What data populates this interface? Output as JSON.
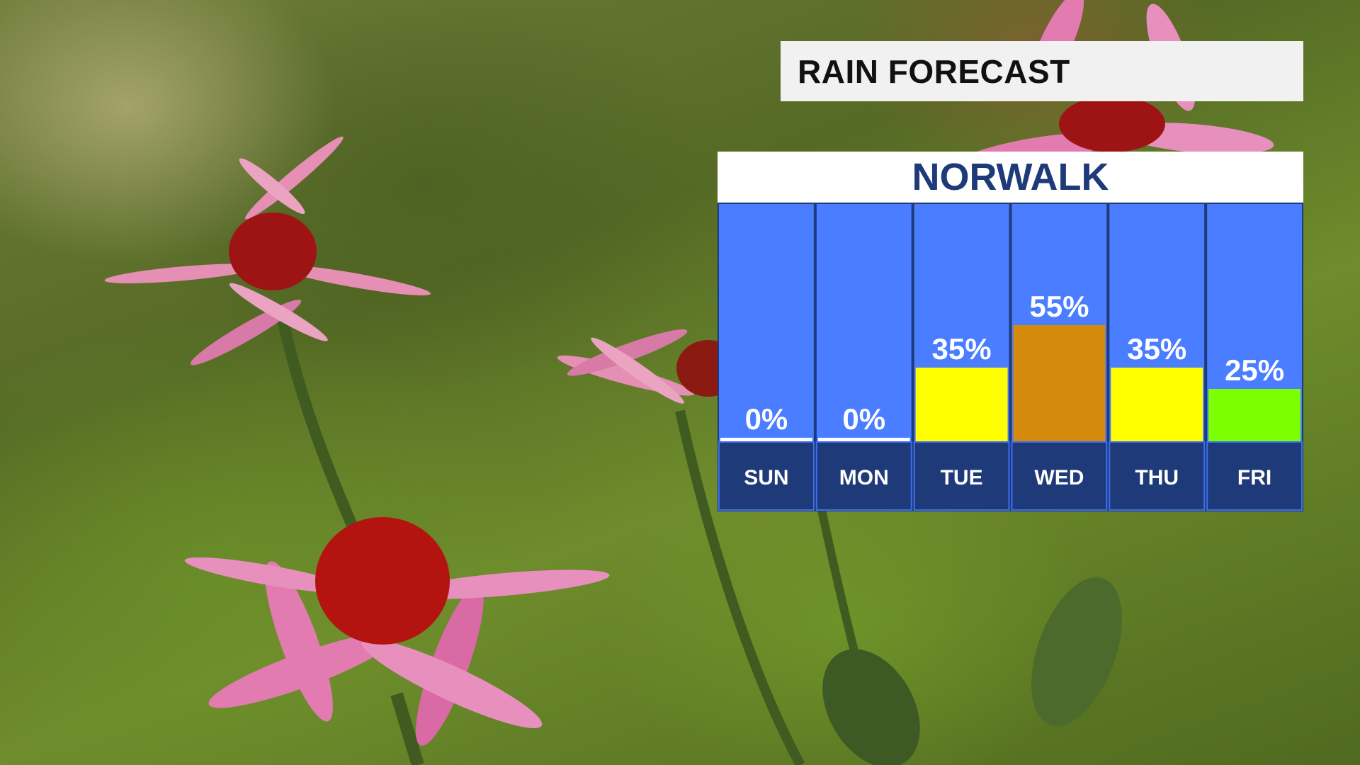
{
  "title": "RAIN FORECAST",
  "location": "NORWALK",
  "chart_data": {
    "type": "bar",
    "categories": [
      "SUN",
      "MON",
      "TUE",
      "WED",
      "THU",
      "FRI"
    ],
    "values": [
      0,
      0,
      35,
      55,
      35,
      25
    ],
    "value_labels": [
      "0%",
      "0%",
      "35%",
      "55%",
      "35%",
      "25%"
    ],
    "bar_colors": [
      "#ffffff",
      "#ffffff",
      "#ffff00",
      "#d48a0c",
      "#ffff00",
      "#7cff00"
    ],
    "ylim": [
      0,
      100
    ],
    "xlabel": "",
    "ylabel": "",
    "grid": false,
    "legend": "none",
    "column_color": "#4a7dff",
    "day_band_color": "#1e3a78"
  }
}
